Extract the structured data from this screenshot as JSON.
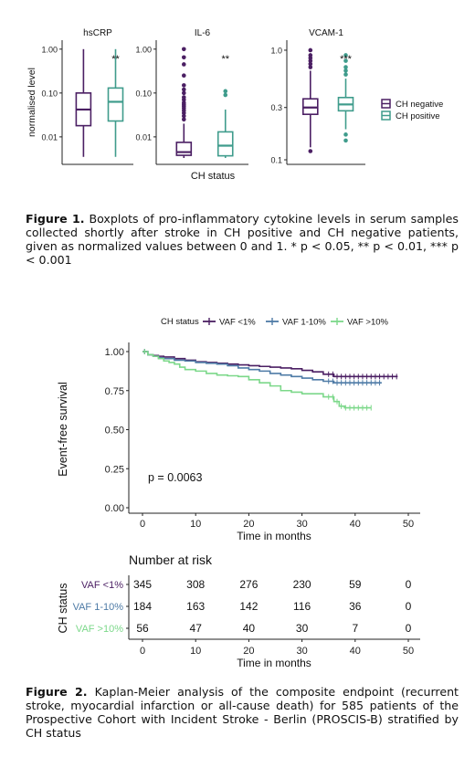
{
  "figure1": {
    "ylabel": "normalised level",
    "xlabel": "CH status",
    "significance": {
      "hsCRP": "**",
      "IL-6": "**",
      "VCAM-1": "***"
    },
    "legend": [
      {
        "label": "CH negative",
        "color": "#4b1f63"
      },
      {
        "label": "CH positive",
        "color": "#3f9c8c"
      }
    ],
    "caption_label": "Figure 1.",
    "caption_text": " Boxplots of pro-inflammatory cytokine levels in serum samples collected shortly after stroke in CH positive and CH negative patients, given as normalized values between 0 and 1. * p < 0.05, ** p < 0.01, *** p < 0.001"
  },
  "figure2": {
    "legend_title": "CH status",
    "ylabel": "Event-free survival",
    "xlabel": "Time in months",
    "pvalue": "p = 0.0063",
    "risk_title": "Number at risk",
    "risk_ylabel": "CH status",
    "risk_xlabel": "Time in months",
    "caption_label": "Figure 2.",
    "caption_text": " Kaplan-Meier analysis of the composite endpoint (recurrent stroke, myocardial infarction or all-cause death) for 585 patients of the Prospective Cohort with Incident Stroke - Berlin (PROSCIS-B) stratified by CH status"
  },
  "chart_data": [
    {
      "type": "box",
      "title": "hsCRP",
      "scale": "log",
      "yticks": [
        "0.01",
        "0.10",
        "1.00"
      ],
      "ytick_values": [
        0.01,
        0.1,
        1.0
      ],
      "ylim": [
        0.003,
        1.2
      ],
      "groups": [
        {
          "name": "CH negative",
          "color": "#4b1f63",
          "whisker_low": 0.0035,
          "q1": 0.018,
          "median": 0.042,
          "q3": 0.1,
          "whisker_high": 1.0,
          "outliers": []
        },
        {
          "name": "CH positive",
          "color": "#3f9c8c",
          "whisker_low": 0.0035,
          "q1": 0.023,
          "median": 0.063,
          "q3": 0.13,
          "whisker_high": 1.0,
          "outliers": []
        }
      ]
    },
    {
      "type": "box",
      "title": "IL-6",
      "scale": "log",
      "yticks": [
        "0.01",
        "0.10",
        "1.00"
      ],
      "ytick_values": [
        0.01,
        0.1,
        1.0
      ],
      "ylim": [
        0.003,
        1.2
      ],
      "groups": [
        {
          "name": "CH negative",
          "color": "#4b1f63",
          "whisker_low": 0.0033,
          "q1": 0.0038,
          "median": 0.0045,
          "q3": 0.0075,
          "whisker_high": 0.02,
          "outliers": [
            0.025,
            0.03,
            0.035,
            0.04,
            0.045,
            0.05,
            0.055,
            0.06,
            0.07,
            0.08,
            0.1,
            0.12,
            0.15,
            0.25,
            0.45,
            0.65,
            1.0
          ]
        },
        {
          "name": "CH positive",
          "color": "#3f9c8c",
          "whisker_low": 0.0033,
          "q1": 0.0037,
          "median": 0.0063,
          "q3": 0.013,
          "whisker_high": 0.042,
          "outliers": [
            0.09,
            0.11
          ]
        }
      ]
    },
    {
      "type": "box",
      "title": "VCAM-1",
      "scale": "log",
      "yticks": [
        "0.1",
        "0.3",
        "1.0"
      ],
      "ytick_values": [
        0.1,
        0.3,
        1.0
      ],
      "ylim": [
        0.1,
        1.1
      ],
      "groups": [
        {
          "name": "CH negative",
          "color": "#4b1f63",
          "whisker_low": 0.13,
          "q1": 0.26,
          "median": 0.3,
          "q3": 0.36,
          "whisker_high": 0.65,
          "outliers": [
            0.12,
            0.7,
            0.75,
            0.8,
            0.85,
            0.9,
            1.0
          ]
        },
        {
          "name": "CH positive",
          "color": "#3f9c8c",
          "whisker_low": 0.19,
          "q1": 0.28,
          "median": 0.32,
          "q3": 0.37,
          "whisker_high": 0.55,
          "outliers": [
            0.15,
            0.17,
            0.6,
            0.65,
            0.7,
            0.8,
            0.9
          ]
        }
      ]
    },
    {
      "type": "line",
      "subtype": "kaplan-meier",
      "xticks": [
        0,
        10,
        20,
        30,
        40,
        50
      ],
      "yticks": [
        "0.00",
        "0.25",
        "0.50",
        "0.75",
        "1.00"
      ],
      "ytick_values": [
        0,
        0.25,
        0.5,
        0.75,
        1.0
      ],
      "xlim": [
        -2,
        52
      ],
      "ylim": [
        -0.02,
        1.05
      ],
      "legend_position": "top",
      "series": [
        {
          "name": "VAF <1%",
          "color": "#4b1f63",
          "points": [
            [
              0,
              1.0
            ],
            [
              1,
              0.98
            ],
            [
              2,
              0.975
            ],
            [
              3,
              0.97
            ],
            [
              4,
              0.965
            ],
            [
              6,
              0.955
            ],
            [
              8,
              0.945
            ],
            [
              10,
              0.935
            ],
            [
              12,
              0.93
            ],
            [
              14,
              0.925
            ],
            [
              16,
              0.92
            ],
            [
              18,
              0.915
            ],
            [
              20,
              0.91
            ],
            [
              22,
              0.905
            ],
            [
              24,
              0.9
            ],
            [
              26,
              0.895
            ],
            [
              28,
              0.89
            ],
            [
              30,
              0.88
            ],
            [
              32,
              0.87
            ],
            [
              34,
              0.855
            ],
            [
              36,
              0.84
            ],
            [
              38,
              0.84
            ],
            [
              40,
              0.84
            ],
            [
              42,
              0.84
            ],
            [
              44,
              0.84
            ],
            [
              46,
              0.84
            ],
            [
              48,
              0.84
            ]
          ]
        },
        {
          "name": "VAF 1-10%",
          "color": "#4e7ba6",
          "points": [
            [
              0,
              1.0
            ],
            [
              1,
              0.98
            ],
            [
              2,
              0.97
            ],
            [
              3,
              0.96
            ],
            [
              4,
              0.955
            ],
            [
              6,
              0.945
            ],
            [
              8,
              0.94
            ],
            [
              10,
              0.93
            ],
            [
              12,
              0.925
            ],
            [
              14,
              0.92
            ],
            [
              16,
              0.91
            ],
            [
              18,
              0.895
            ],
            [
              20,
              0.885
            ],
            [
              22,
              0.875
            ],
            [
              24,
              0.86
            ],
            [
              26,
              0.85
            ],
            [
              28,
              0.84
            ],
            [
              30,
              0.83
            ],
            [
              32,
              0.82
            ],
            [
              34,
              0.81
            ],
            [
              36,
              0.8
            ],
            [
              38,
              0.8
            ],
            [
              40,
              0.8
            ],
            [
              42,
              0.8
            ],
            [
              44,
              0.8
            ],
            [
              45,
              0.8
            ]
          ]
        },
        {
          "name": "VAF >10%",
          "color": "#7cd88a",
          "points": [
            [
              0,
              1.0
            ],
            [
              1,
              0.98
            ],
            [
              2,
              0.97
            ],
            [
              3,
              0.955
            ],
            [
              4,
              0.94
            ],
            [
              5,
              0.93
            ],
            [
              6,
              0.92
            ],
            [
              7,
              0.9
            ],
            [
              8,
              0.885
            ],
            [
              10,
              0.875
            ],
            [
              12,
              0.86
            ],
            [
              14,
              0.85
            ],
            [
              16,
              0.845
            ],
            [
              18,
              0.84
            ],
            [
              20,
              0.82
            ],
            [
              22,
              0.8
            ],
            [
              24,
              0.78
            ],
            [
              26,
              0.75
            ],
            [
              28,
              0.74
            ],
            [
              30,
              0.73
            ],
            [
              32,
              0.73
            ],
            [
              34,
              0.71
            ],
            [
              36,
              0.68
            ],
            [
              37,
              0.65
            ],
            [
              38,
              0.64
            ],
            [
              40,
              0.64
            ],
            [
              42,
              0.64
            ],
            [
              43,
              0.64
            ]
          ]
        }
      ]
    },
    {
      "type": "table",
      "title": "Number at risk",
      "columns": [
        0,
        10,
        20,
        30,
        40,
        50
      ],
      "rows": [
        {
          "label": "VAF <1%",
          "color": "#4b1f63",
          "values": [
            345,
            308,
            276,
            230,
            59,
            0
          ]
        },
        {
          "label": "VAF 1-10%",
          "color": "#4e7ba6",
          "values": [
            184,
            163,
            142,
            116,
            36,
            0
          ]
        },
        {
          "label": "VAF >10%",
          "color": "#7cd88a",
          "values": [
            56,
            47,
            40,
            30,
            7,
            0
          ]
        }
      ]
    }
  ]
}
